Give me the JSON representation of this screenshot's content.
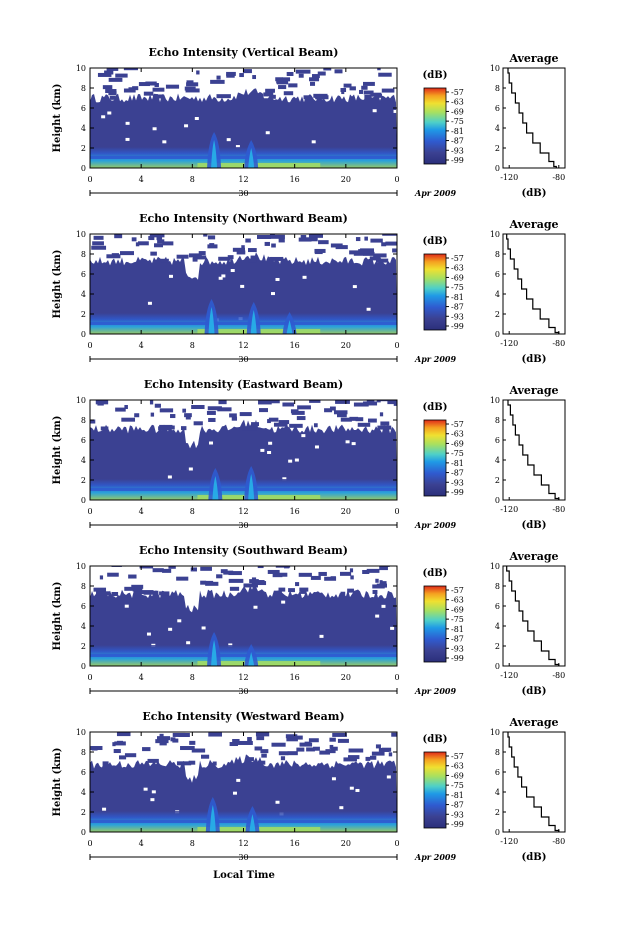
{
  "chart_data": [
    {
      "type": "heatmap",
      "title": "Echo Intensity (Vertical Beam)",
      "ylabel": "Height (km)",
      "xlim": [
        0,
        24
      ],
      "ylim": [
        0,
        10
      ],
      "xticks": [
        "0",
        "4",
        "8",
        "12",
        "16",
        "20",
        "0"
      ],
      "yticks": [
        "0",
        "2",
        "4",
        "6",
        "8",
        "10"
      ],
      "date_label": "30",
      "month_label": "Apr 2009",
      "colorbar": {
        "unit": "(dB)",
        "ticks": [
          "-57",
          "-63",
          "-69",
          "-75",
          "-81",
          "-87",
          "-93",
          "-99"
        ]
      },
      "echo_top_km": 7.0,
      "tufts": [
        {
          "t": 9.7,
          "h": 3.6
        },
        {
          "t": 12.6,
          "h": 2.8
        }
      ],
      "profile": {
        "title": "Average",
        "xlabel": "(dB)",
        "xticks": [
          "-120",
          "-80"
        ],
        "xlim": [
          -125,
          -75
        ],
        "points": [
          [
            -121,
            10
          ],
          [
            -120,
            9
          ],
          [
            -118,
            8
          ],
          [
            -115,
            7
          ],
          [
            -112,
            6
          ],
          [
            -109,
            5
          ],
          [
            -106,
            4
          ],
          [
            -101,
            3
          ],
          [
            -95,
            2
          ],
          [
            -88,
            1
          ],
          [
            -84,
            0.3
          ],
          [
            -82,
            0
          ]
        ]
      }
    },
    {
      "type": "heatmap",
      "title": "Echo Intensity (Northward Beam)",
      "ylabel": "Height (km)",
      "xlim": [
        0,
        24
      ],
      "ylim": [
        0,
        10
      ],
      "xticks": [
        "0",
        "4",
        "8",
        "12",
        "16",
        "20",
        "0"
      ],
      "yticks": [
        "0",
        "2",
        "4",
        "6",
        "8",
        "10"
      ],
      "date_label": "30",
      "month_label": "Apr 2009",
      "colorbar": {
        "unit": "(dB)",
        "ticks": [
          "-57",
          "-63",
          "-69",
          "-75",
          "-81",
          "-87",
          "-93",
          "-99"
        ]
      },
      "echo_top_km": 7.3,
      "tufts": [
        {
          "t": 9.5,
          "h": 3.5
        },
        {
          "t": 12.8,
          "h": 3.2
        },
        {
          "t": 15.6,
          "h": 2.2
        }
      ],
      "profile": {
        "title": "Average",
        "xlabel": "(dB)",
        "xticks": [
          "-120",
          "-80"
        ],
        "xlim": [
          -125,
          -75
        ],
        "points": [
          [
            -122,
            10
          ],
          [
            -121,
            9
          ],
          [
            -119,
            8
          ],
          [
            -116,
            7
          ],
          [
            -113,
            6
          ],
          [
            -110,
            5
          ],
          [
            -106,
            4
          ],
          [
            -101,
            3
          ],
          [
            -95,
            2
          ],
          [
            -88,
            1
          ],
          [
            -83,
            0.3
          ],
          [
            -80,
            0
          ]
        ]
      }
    },
    {
      "type": "heatmap",
      "title": "Echo Intensity (Eastward Beam)",
      "ylabel": "Height (km)",
      "xlim": [
        0,
        24
      ],
      "ylim": [
        0,
        10
      ],
      "xticks": [
        "0",
        "4",
        "8",
        "12",
        "16",
        "20",
        "0"
      ],
      "yticks": [
        "0",
        "2",
        "4",
        "6",
        "8",
        "10"
      ],
      "date_label": "30",
      "month_label": "Apr 2009",
      "colorbar": {
        "unit": "(dB)",
        "ticks": [
          "-57",
          "-63",
          "-69",
          "-75",
          "-81",
          "-87",
          "-93",
          "-99"
        ]
      },
      "echo_top_km": 7.1,
      "tufts": [
        {
          "t": 9.8,
          "h": 3.2
        },
        {
          "t": 12.6,
          "h": 3.4
        }
      ],
      "profile": {
        "title": "Average",
        "xlabel": "(dB)",
        "xticks": [
          "-120",
          "-80"
        ],
        "xlim": [
          -125,
          -75
        ],
        "points": [
          [
            -121,
            10
          ],
          [
            -119,
            9
          ],
          [
            -117,
            8
          ],
          [
            -115,
            7
          ],
          [
            -112,
            6
          ],
          [
            -109,
            5
          ],
          [
            -105,
            4
          ],
          [
            -100,
            3
          ],
          [
            -94,
            2
          ],
          [
            -88,
            1
          ],
          [
            -83,
            0.3
          ],
          [
            -80,
            0
          ]
        ]
      }
    },
    {
      "type": "heatmap",
      "title": "Echo Intensity (Southward Beam)",
      "ylabel": "Height (km)",
      "xlim": [
        0,
        24
      ],
      "ylim": [
        0,
        10
      ],
      "xticks": [
        "0",
        "4",
        "8",
        "12",
        "16",
        "20",
        "0"
      ],
      "yticks": [
        "0",
        "2",
        "4",
        "6",
        "8",
        "10"
      ],
      "date_label": "30",
      "month_label": "Apr 2009",
      "colorbar": {
        "unit": "(dB)",
        "ticks": [
          "-57",
          "-63",
          "-69",
          "-75",
          "-81",
          "-87",
          "-93",
          "-99"
        ]
      },
      "echo_top_km": 7.2,
      "tufts": [
        {
          "t": 9.7,
          "h": 3.4
        },
        {
          "t": 12.6,
          "h": 2.2
        }
      ],
      "profile": {
        "title": "Average",
        "xlabel": "(dB)",
        "xticks": [
          "-120",
          "-80"
        ],
        "xlim": [
          -125,
          -75
        ],
        "points": [
          [
            -122,
            10
          ],
          [
            -120,
            9
          ],
          [
            -118,
            8
          ],
          [
            -115,
            7
          ],
          [
            -112,
            6
          ],
          [
            -109,
            5
          ],
          [
            -105,
            4
          ],
          [
            -100,
            3
          ],
          [
            -94,
            2
          ],
          [
            -88,
            1
          ],
          [
            -83,
            0.3
          ],
          [
            -80,
            0
          ]
        ]
      }
    },
    {
      "type": "heatmap",
      "title": "Echo Intensity (Westward Beam)",
      "ylabel": "Height (km)",
      "xlabel": "Local Time",
      "xlim": [
        0,
        24
      ],
      "ylim": [
        0,
        10
      ],
      "xticks": [
        "0",
        "4",
        "8",
        "12",
        "16",
        "20",
        "0"
      ],
      "yticks": [
        "0",
        "2",
        "4",
        "6",
        "8",
        "10"
      ],
      "date_label": "30",
      "month_label": "Apr 2009",
      "colorbar": {
        "unit": "(dB)",
        "ticks": [
          "-57",
          "-63",
          "-69",
          "-75",
          "-81",
          "-87",
          "-93",
          "-99"
        ]
      },
      "echo_top_km": 6.8,
      "tufts": [
        {
          "t": 9.6,
          "h": 3.5
        },
        {
          "t": 12.7,
          "h": 2.6
        }
      ],
      "profile": {
        "title": "Average",
        "xlabel": "(dB)",
        "xticks": [
          "-120",
          "-80"
        ],
        "xlim": [
          -125,
          -75
        ],
        "points": [
          [
            -121,
            10
          ],
          [
            -120,
            9
          ],
          [
            -118,
            8
          ],
          [
            -116,
            7
          ],
          [
            -113,
            6
          ],
          [
            -110,
            5
          ],
          [
            -106,
            4
          ],
          [
            -100,
            3
          ],
          [
            -94,
            2
          ],
          [
            -88,
            1
          ],
          [
            -83,
            0.3
          ],
          [
            -80,
            0
          ]
        ]
      }
    }
  ],
  "colors": {
    "background_echo": "#3b4192",
    "colormap": [
      "#3b4192",
      "#2f5bd0",
      "#1f86e6",
      "#27b2e8",
      "#58d4b0",
      "#a8e060",
      "#f0e030",
      "#f5a020",
      "#e84a1e"
    ]
  }
}
